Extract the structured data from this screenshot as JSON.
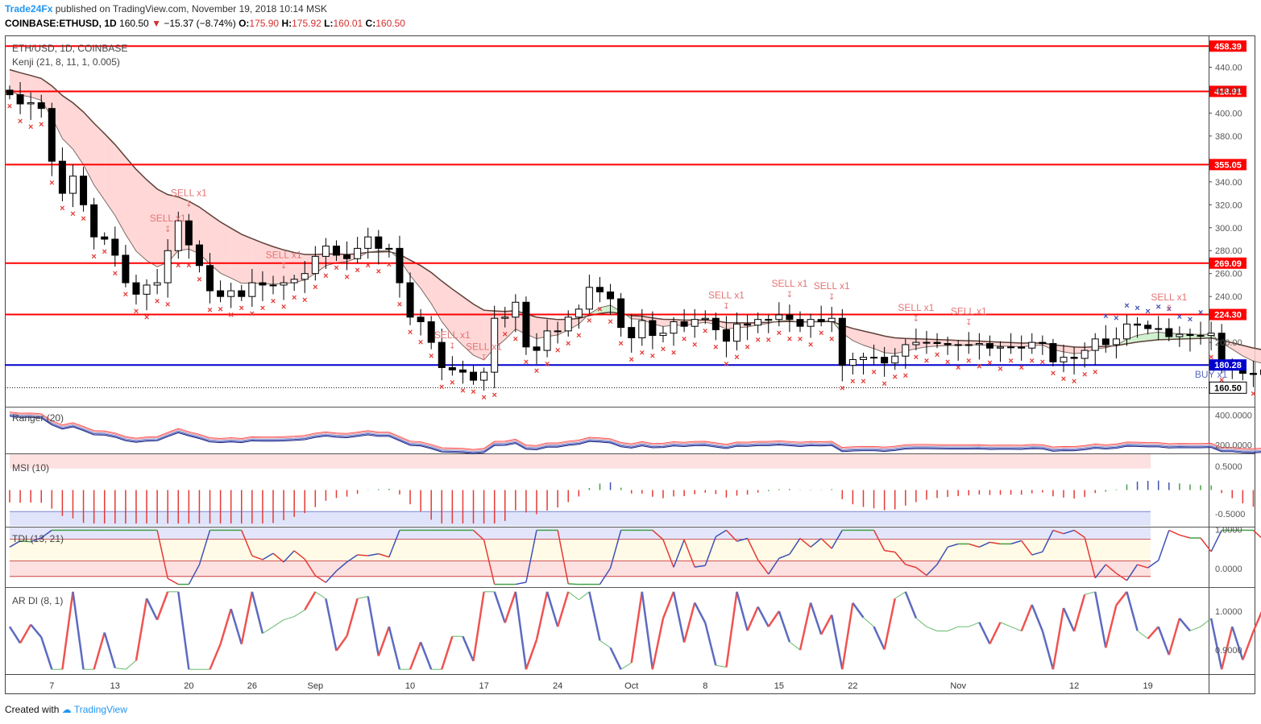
{
  "header": {
    "brand": "Trade24Fx",
    "published_text": "published on TradingView.com, November 19, 2018 10:14 MSK",
    "symbol_line": "COINBASE:ETHUSD, 1D",
    "last": "160.50",
    "change": "−15.37 (−8.74%)",
    "open_label": "O:",
    "open": "175.90",
    "high_label": "H:",
    "high": "175.92",
    "low_label": "L:",
    "low": "160.01",
    "close_label": "C:",
    "close": "160.50"
  },
  "footer": {
    "created_with": "Created with",
    "tradingview": "TradingView"
  },
  "colors": {
    "up": "#ffffff",
    "down": "#000000",
    "level_red": "#ff0000",
    "level_blue": "#0000cc",
    "cross": "#e53935",
    "buy": "#3f51b5"
  },
  "chart_data": {
    "type": "candlestick",
    "main_pane": {
      "title": "ETH/USD, 1D, COINBASE",
      "indicator": "Kenji (21, 8, 11, 1, 0.005)",
      "ylim": [
        146,
        467
      ],
      "y_ticks": [
        {
          "value": 440,
          "label": "440.00"
        },
        {
          "value": 420,
          "label": "420.00"
        },
        {
          "value": 400,
          "label": "400.00"
        },
        {
          "value": 380,
          "label": "380.00"
        },
        {
          "value": 340,
          "label": "340.00"
        },
        {
          "value": 320,
          "label": "320.00"
        },
        {
          "value": 300,
          "label": "300.00"
        },
        {
          "value": 280,
          "label": "280.00"
        },
        {
          "value": 260,
          "label": "260.00"
        },
        {
          "value": 240,
          "label": "240.00"
        },
        {
          "value": 200,
          "label": "200.00"
        }
      ],
      "levels": [
        {
          "value": 458.39,
          "label": "458.39",
          "color": "red"
        },
        {
          "value": 418.91,
          "label": "418.91",
          "color": "red"
        },
        {
          "value": 355.05,
          "label": "355.05",
          "color": "red"
        },
        {
          "value": 269.09,
          "label": "269.09",
          "color": "red"
        },
        {
          "value": 224.3,
          "label": "224.30",
          "color": "red"
        },
        {
          "value": 180.28,
          "label": "180.28",
          "color": "blue"
        }
      ],
      "last_price": {
        "value": 160.5,
        "label": "160.50"
      },
      "close": [
        416,
        408,
        409,
        404,
        358,
        330,
        345,
        320,
        292,
        290,
        276,
        252,
        242,
        250,
        252,
        280,
        306,
        285,
        267,
        245,
        240,
        245,
        240,
        252,
        250,
        250,
        252,
        255,
        260,
        275,
        284,
        276,
        273,
        282,
        292,
        282,
        282,
        252,
        222,
        218,
        200,
        178,
        176,
        174,
        167,
        174,
        221,
        222,
        235,
        196,
        193,
        210,
        210,
        222,
        229,
        248,
        244,
        238,
        213,
        204,
        219,
        206,
        208,
        218,
        214,
        220,
        221,
        211,
        201,
        216,
        215,
        220,
        220,
        224,
        220,
        214,
        220,
        218,
        221,
        180,
        185,
        187,
        187,
        182,
        188,
        198,
        200,
        200,
        199,
        198,
        198,
        198,
        199,
        195,
        196,
        196,
        195,
        200,
        199,
        183,
        187,
        186,
        193,
        203,
        198,
        203,
        216,
        215,
        212,
        212,
        205,
        207,
        206,
        206,
        208,
        180,
        180,
        173,
        172,
        176,
        160.5
      ],
      "buy_signals": [
        {
          "day": 114,
          "label": "BUY x1"
        }
      ],
      "sell_signals": [
        {
          "day": 15,
          "label": "SELL x1"
        },
        {
          "day": 17,
          "label": "SELL x1"
        },
        {
          "day": 26,
          "label": "SELL x1"
        },
        {
          "day": 42,
          "label": "SELL x1"
        },
        {
          "day": 45,
          "label": "SELL x1"
        },
        {
          "day": 68,
          "label": "SELL x1"
        },
        {
          "day": 74,
          "label": "SELL x1"
        },
        {
          "day": 78,
          "label": "SELL x1"
        },
        {
          "day": 86,
          "label": "SELL x1"
        },
        {
          "day": 91,
          "label": "SELL x1"
        },
        {
          "day": 110,
          "label": "SELL x1"
        }
      ]
    },
    "x_axis": {
      "labels": [
        {
          "day": 4,
          "label": "7"
        },
        {
          "day": 10,
          "label": "13"
        },
        {
          "day": 17,
          "label": "20"
        },
        {
          "day": 23,
          "label": "26"
        },
        {
          "day": 29,
          "label": "Sep"
        },
        {
          "day": 38,
          "label": "10"
        },
        {
          "day": 45,
          "label": "17"
        },
        {
          "day": 52,
          "label": "24"
        },
        {
          "day": 59,
          "label": "Oct"
        },
        {
          "day": 66,
          "label": "8"
        },
        {
          "day": 73,
          "label": "15"
        },
        {
          "day": 80,
          "label": "22"
        },
        {
          "day": 90,
          "label": "Nov"
        },
        {
          "day": 101,
          "label": "12"
        },
        {
          "day": 108,
          "label": "19"
        }
      ]
    },
    "ranger_pane": {
      "title": "Ranger (20)",
      "ylim": [
        150,
        450
      ],
      "ticks": [
        {
          "value": 400,
          "label": "400.0000"
        },
        {
          "value": 200,
          "label": "200.0000"
        }
      ]
    },
    "msi_pane": {
      "title": "MSI (10)",
      "ylim": [
        -0.75,
        0.75
      ],
      "ticks": [
        {
          "value": 0.5,
          "label": "0.5000"
        },
        {
          "value": -0.5,
          "label": "-0.5000"
        }
      ]
    },
    "tdi_pane": {
      "title": "TDI (13, 21)",
      "ylim": [
        -0.45,
        1.05
      ],
      "ticks": [
        {
          "value": 1,
          "label": "1.0000"
        },
        {
          "value": 0,
          "label": "0.0000"
        }
      ]
    },
    "ardi_pane": {
      "title": "AR DI (8, 1)",
      "ylim": [
        0.84,
        1.06
      ],
      "ticks": [
        {
          "value": 1,
          "label": "1.0000"
        },
        {
          "value": 0.9,
          "label": "0.9000"
        }
      ]
    }
  }
}
